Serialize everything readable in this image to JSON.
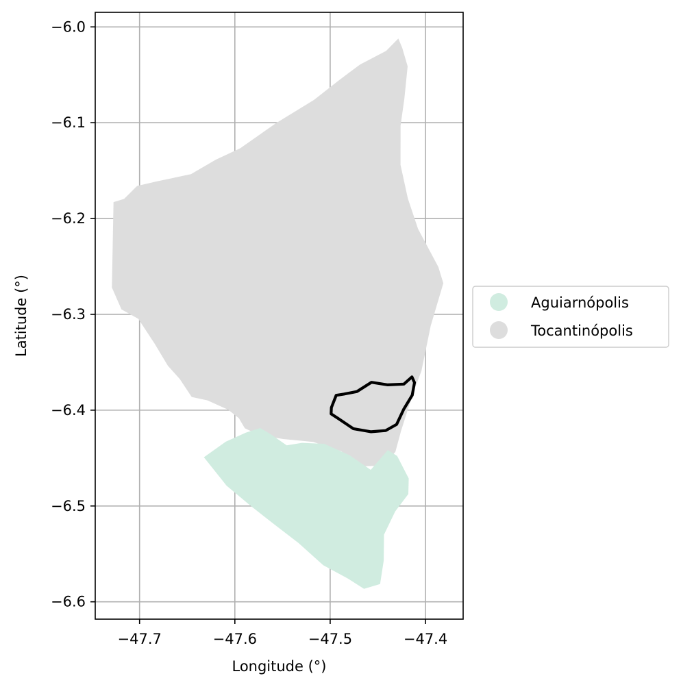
{
  "chart_data": {
    "type": "map",
    "xlabel": "Longitude (°)",
    "ylabel": "Latitude (°)",
    "xlim": [
      -47.7465,
      -47.3605
    ],
    "ylim": [
      -6.6181,
      -5.9848
    ],
    "grid": true,
    "x_ticks": [
      {
        "value": -47.7,
        "label": "−47.7"
      },
      {
        "value": -47.6,
        "label": "−47.6"
      },
      {
        "value": -47.5,
        "label": "−47.5"
      },
      {
        "value": -47.4,
        "label": "−47.4"
      }
    ],
    "y_ticks": [
      {
        "value": -6.0,
        "label": "−6.0"
      },
      {
        "value": -6.1,
        "label": "−6.1"
      },
      {
        "value": -6.2,
        "label": "−6.2"
      },
      {
        "value": -6.3,
        "label": "−6.3"
      },
      {
        "value": -6.4,
        "label": "−6.4"
      },
      {
        "value": -6.5,
        "label": "−6.5"
      },
      {
        "value": -6.6,
        "label": "−6.6"
      }
    ],
    "legend": {
      "placement": "center-right-outside",
      "entries": [
        {
          "label": "Aguiarnópolis",
          "color": "#d0ece0"
        },
        {
          "label": "Tocantinópolis",
          "color": "#dddddd"
        }
      ]
    },
    "regions": [
      {
        "name": "Tocantinópolis",
        "color": "#dddddd",
        "polygon": [
          [
            -47.4285,
            -6.0122
          ],
          [
            -47.4244,
            -6.0219
          ],
          [
            -47.4187,
            -6.0412
          ],
          [
            -47.4222,
            -6.075
          ],
          [
            -47.4261,
            -6.1028
          ],
          [
            -47.4262,
            -6.144
          ],
          [
            -47.4185,
            -6.179
          ],
          [
            -47.4078,
            -6.2109
          ],
          [
            -47.3865,
            -6.2505
          ],
          [
            -47.3813,
            -6.2675
          ],
          [
            -47.3945,
            -6.3119
          ],
          [
            -47.4043,
            -6.3592
          ],
          [
            -47.4128,
            -6.3816
          ],
          [
            -47.4256,
            -6.4216
          ],
          [
            -47.4316,
            -6.4435
          ],
          [
            -47.4441,
            -6.4579
          ],
          [
            -47.4752,
            -6.4588
          ],
          [
            -47.488,
            -6.443
          ],
          [
            -47.5178,
            -6.4332
          ],
          [
            -47.5494,
            -6.4301
          ],
          [
            -47.5749,
            -6.4258
          ],
          [
            -47.5896,
            -6.4188
          ],
          [
            -47.5958,
            -6.4084
          ],
          [
            -47.607,
            -6.3995
          ],
          [
            -47.6287,
            -6.3898
          ],
          [
            -47.6453,
            -6.3862
          ],
          [
            -47.6578,
            -6.3675
          ],
          [
            -47.6702,
            -6.3537
          ],
          [
            -47.684,
            -6.3308
          ],
          [
            -47.7013,
            -6.3047
          ],
          [
            -47.719,
            -6.2949
          ],
          [
            -47.729,
            -6.272
          ],
          [
            -47.7273,
            -6.1829
          ],
          [
            -47.7162,
            -6.1795
          ],
          [
            -47.7026,
            -6.166
          ],
          [
            -47.6816,
            -6.1612
          ],
          [
            -47.646,
            -6.1537
          ],
          [
            -47.6201,
            -6.1386
          ],
          [
            -47.5944,
            -6.1267
          ],
          [
            -47.5567,
            -6.1004
          ],
          [
            -47.517,
            -6.0762
          ],
          [
            -47.491,
            -6.0559
          ],
          [
            -47.4687,
            -6.0393
          ],
          [
            -47.4412,
            -6.025
          ]
        ]
      },
      {
        "name": "Aguiarnópolis",
        "color": "#d0ece0",
        "polygon": [
          [
            -47.6325,
            -6.4491
          ],
          [
            -47.6095,
            -6.4329
          ],
          [
            -47.5888,
            -6.4236
          ],
          [
            -47.5734,
            -6.4186
          ],
          [
            -47.5623,
            -6.4252
          ],
          [
            -47.5456,
            -6.4367
          ],
          [
            -47.5296,
            -6.4341
          ],
          [
            -47.5062,
            -6.4351
          ],
          [
            -47.4794,
            -6.4472
          ],
          [
            -47.4575,
            -6.4623
          ],
          [
            -47.4395,
            -6.4416
          ],
          [
            -47.4297,
            -6.4478
          ],
          [
            -47.4176,
            -6.4713
          ],
          [
            -47.418,
            -6.4876
          ],
          [
            -47.4317,
            -6.5056
          ],
          [
            -47.4435,
            -6.5299
          ],
          [
            -47.4438,
            -6.5569
          ],
          [
            -47.4476,
            -6.5815
          ],
          [
            -47.4645,
            -6.5865
          ],
          [
            -47.4814,
            -6.5758
          ],
          [
            -47.5073,
            -6.5618
          ],
          [
            -47.5333,
            -6.5386
          ],
          [
            -47.5576,
            -6.52
          ],
          [
            -47.5835,
            -6.4998
          ],
          [
            -47.6087,
            -6.4788
          ]
        ]
      }
    ],
    "highlight_outline": {
      "color": "#000000",
      "polygon": [
        [
          -47.4142,
          -6.3653
        ],
        [
          -47.4227,
          -6.3728
        ],
        [
          -47.4396,
          -6.3736
        ],
        [
          -47.4567,
          -6.3709
        ],
        [
          -47.4719,
          -6.3806
        ],
        [
          -47.4857,
          -6.3832
        ],
        [
          -47.4937,
          -6.3845
        ],
        [
          -47.4987,
          -6.3973
        ],
        [
          -47.499,
          -6.4038
        ],
        [
          -47.4913,
          -6.4089
        ],
        [
          -47.4757,
          -6.4193
        ],
        [
          -47.4571,
          -6.4225
        ],
        [
          -47.4418,
          -6.4213
        ],
        [
          -47.4303,
          -6.4149
        ],
        [
          -47.4228,
          -6.399
        ],
        [
          -47.4139,
          -6.3844
        ],
        [
          -47.4115,
          -6.3712
        ]
      ]
    }
  }
}
